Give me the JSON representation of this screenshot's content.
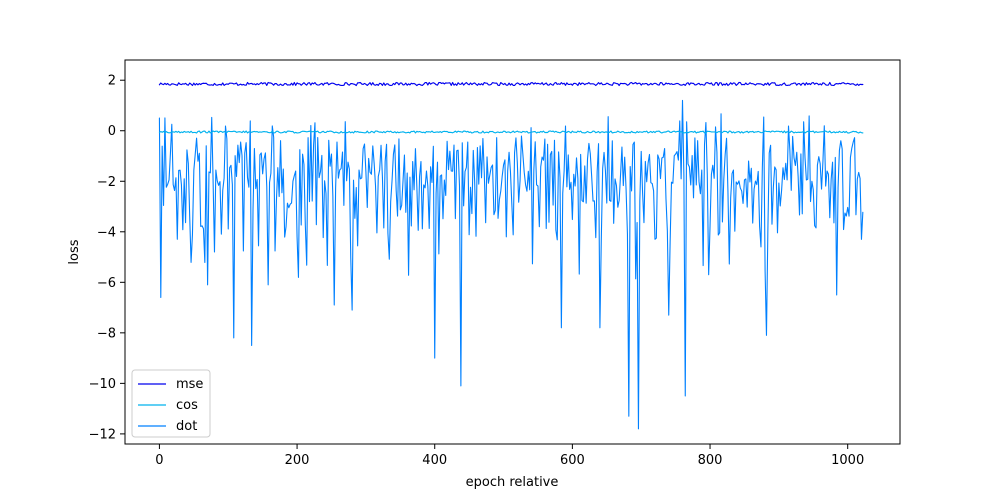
{
  "chart_data": {
    "type": "line",
    "title": "",
    "xlabel": "epoch relative",
    "ylabel": "loss",
    "xlim": [
      -50,
      1076
    ],
    "ylim": [
      -12.4,
      2.8
    ],
    "xticks": [
      0,
      200,
      400,
      600,
      800,
      1000
    ],
    "yticks": [
      2,
      0,
      -2,
      -4,
      -6,
      -8,
      -10,
      -12
    ],
    "xtick_labels": [
      "0",
      "200",
      "400",
      "600",
      "800",
      "1000"
    ],
    "ytick_labels": [
      "2",
      "0",
      "−2",
      "−4",
      "−6",
      "−8",
      "−10",
      "−12"
    ],
    "legend_position": "lower-left",
    "grid": false,
    "series_meta": [
      {
        "name": "mse",
        "color": "#0000ee",
        "mean": 1.85,
        "noise": 0.06,
        "x_max": 1023
      },
      {
        "name": "cos",
        "color": "#00b2ee",
        "mean": -0.05,
        "noise": 0.04,
        "x_max": 1023
      },
      {
        "name": "dot",
        "color": "#0080ff",
        "mean": -1.4,
        "noise": 1.0,
        "x_max": 1023
      }
    ],
    "dot_key_points": [
      {
        "x": 0,
        "y": 0.5
      },
      {
        "x": 3,
        "y": -6.6
      },
      {
        "x": 70,
        "y": -6.1
      },
      {
        "x": 80,
        "y": -4.8
      },
      {
        "x": 108,
        "y": -8.2
      },
      {
        "x": 135,
        "y": -8.5
      },
      {
        "x": 158,
        "y": -6.1
      },
      {
        "x": 255,
        "y": -6.9
      },
      {
        "x": 280,
        "y": -7.1
      },
      {
        "x": 400,
        "y": -9.0
      },
      {
        "x": 438,
        "y": -10.1
      },
      {
        "x": 585,
        "y": -7.8
      },
      {
        "x": 640,
        "y": -7.8
      },
      {
        "x": 683,
        "y": -11.3
      },
      {
        "x": 697,
        "y": -11.8
      },
      {
        "x": 740,
        "y": -7.3
      },
      {
        "x": 760,
        "y": 1.2
      },
      {
        "x": 765,
        "y": -10.5
      },
      {
        "x": 882,
        "y": -8.1
      },
      {
        "x": 985,
        "y": -6.5
      },
      {
        "x": 1020,
        "y": -4.3
      }
    ]
  }
}
